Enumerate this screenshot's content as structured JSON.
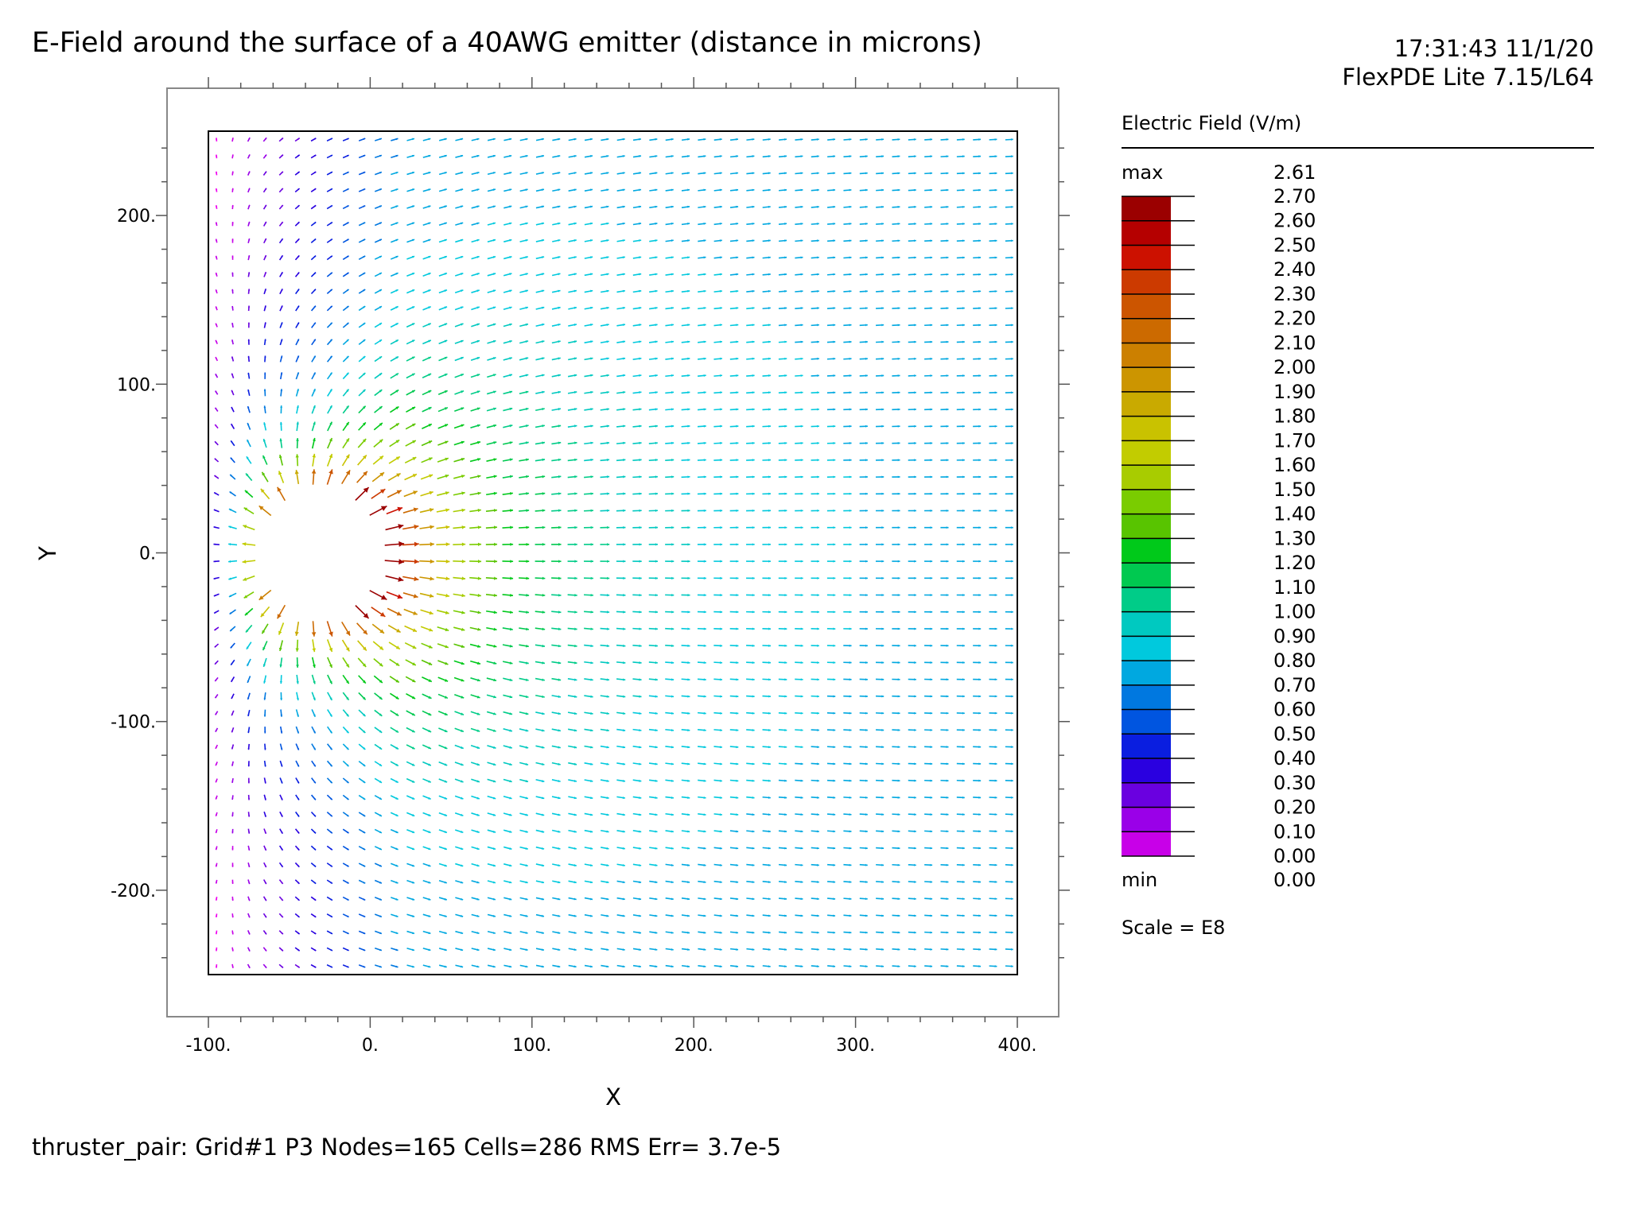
{
  "header": {
    "title": "E-Field around the surface of a 40AWG emitter (distance in microns)",
    "timestamp": "17:31:43 11/1/20",
    "version": "FlexPDE Lite 7.15/L64"
  },
  "footer": {
    "status": "thruster_pair:  Grid#1  P3  Nodes=165 Cells=286 RMS Err= 3.7e-5"
  },
  "legend": {
    "title": "Electric Field (V/m)",
    "max_label": "max",
    "max_value": "2.61",
    "min_label": "min",
    "min_value": "0.00",
    "scale": "Scale = E8",
    "levels": [
      "2.70",
      "2.60",
      "2.50",
      "2.40",
      "2.30",
      "2.20",
      "2.10",
      "2.00",
      "1.90",
      "1.80",
      "1.70",
      "1.60",
      "1.50",
      "1.40",
      "1.30",
      "1.20",
      "1.10",
      "1.00",
      "0.90",
      "0.80",
      "0.70",
      "0.60",
      "0.50",
      "0.40",
      "0.30",
      "0.20",
      "0.10",
      "0.00"
    ],
    "colors": [
      "#9b0000",
      "#b50000",
      "#cc1100",
      "#cc3a00",
      "#cc5500",
      "#cc6a00",
      "#cc8000",
      "#cc9500",
      "#c9aa00",
      "#c9c200",
      "#c2cc00",
      "#a8cc00",
      "#7acc00",
      "#58c400",
      "#00c91a",
      "#00c950",
      "#00cc88",
      "#00c9c0",
      "#00c9dd",
      "#00a8e0",
      "#0078e0",
      "#0055e0",
      "#0a1ee0",
      "#2a00e0",
      "#6a00e0",
      "#9a00e8",
      "#c800e8",
      "#f000f0"
    ]
  },
  "chart_data": {
    "type": "vector_field",
    "title": "E-Field around the surface of a 40AWG emitter (distance in microns)",
    "xlabel": "X",
    "ylabel": "Y",
    "xlim": [
      -100,
      400
    ],
    "ylim": [
      -250,
      250
    ],
    "xticks": [
      "-100.",
      "0.",
      "100.",
      "200.",
      "300.",
      "400."
    ],
    "yticks": [
      "200.",
      "100.",
      "0.",
      "-100.",
      "-200."
    ],
    "xtick_values": [
      -100,
      0,
      100,
      200,
      300,
      400
    ],
    "ytick_values": [
      200,
      100,
      0,
      -100,
      -200
    ],
    "emitter": {
      "center_x": -30,
      "center_y": 0,
      "radius": 40
    },
    "field_max": 2.61,
    "field_min": 0.0,
    "scale_exponent": 8,
    "far_field_value": 0.75,
    "grid_spacing": 10,
    "legend_position": "right"
  }
}
